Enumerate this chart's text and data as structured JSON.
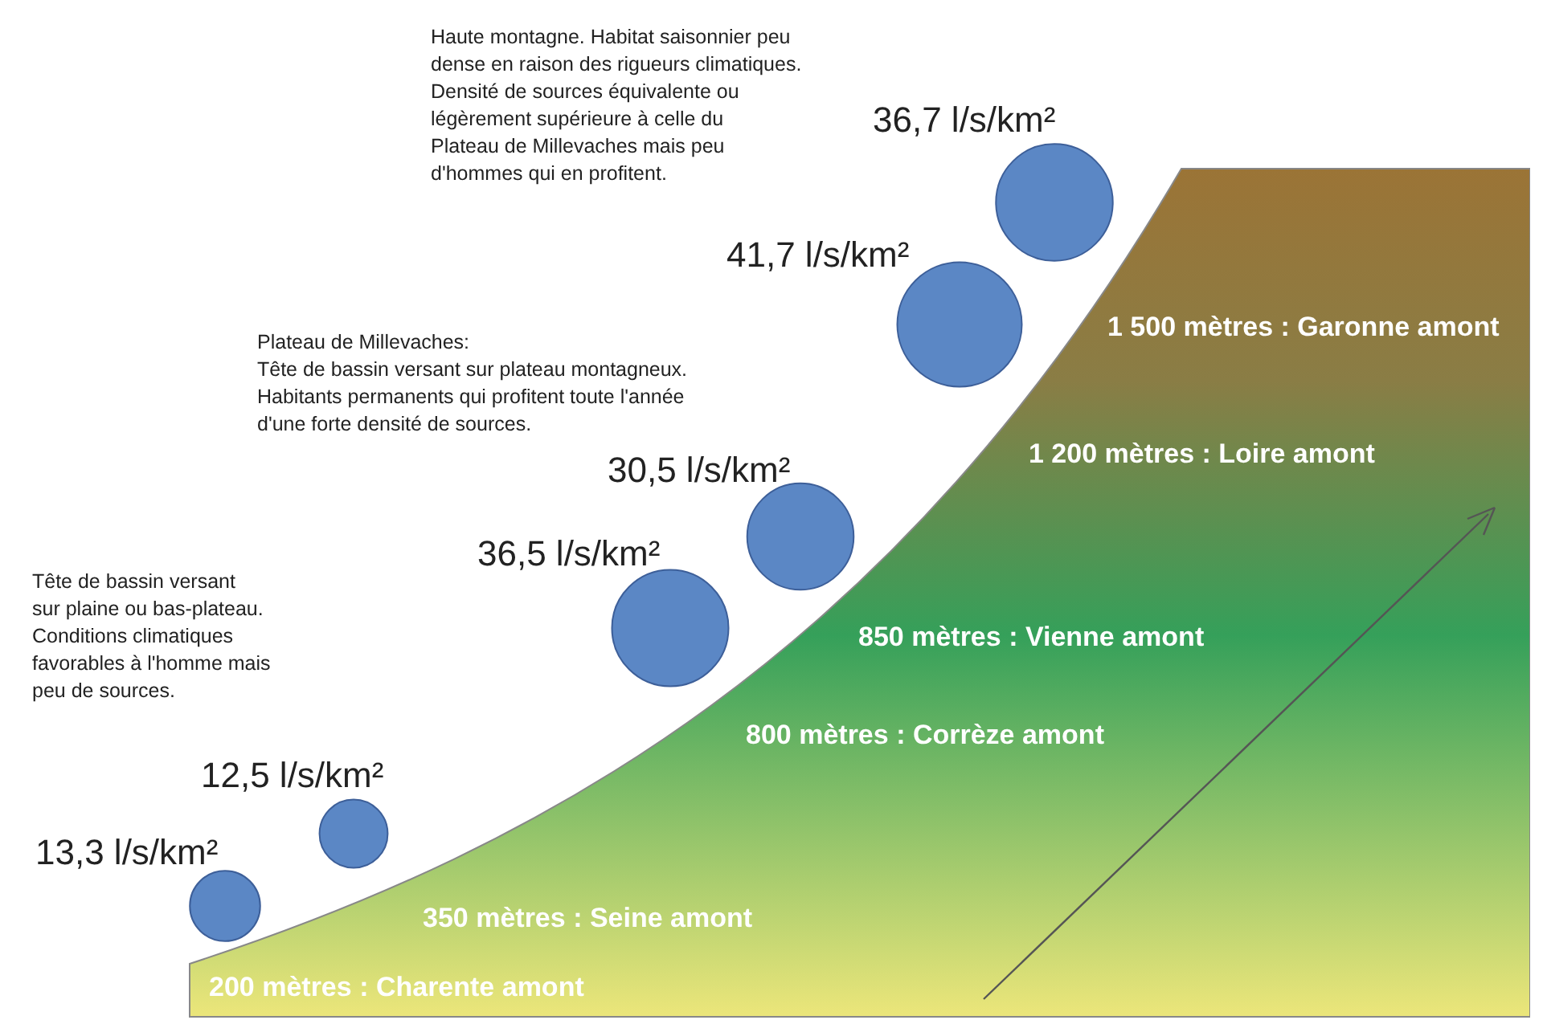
{
  "chart_data": {
    "type": "other",
    "categories": [
      "200 mètres : Charente amont",
      "350 mètres : Seine amont",
      "800 mètres : Corrèze amont",
      "850 mètres : Vienne amont",
      "1 200 mètres : Loire amont",
      "1 500 mètres : Garonne amont"
    ],
    "values": [
      13.3,
      12.5,
      36.5,
      30.5,
      41.7,
      36.7
    ],
    "value_labels": [
      "13,3 l/s/km²",
      "12,5 l/s/km²",
      "36,5 l/s/km²",
      "30,5 l/s/km²",
      "41,7 l/s/km²",
      "36,7 l/s/km²"
    ],
    "color": "#5b87c5",
    "annotations": [
      "Tête de bassin versant\nsur plaine ou bas-plateau.\nConditions climatiques\nfavorables à l'homme mais\npeu de sources.",
      "Plateau de Millevaches:\nTête de bassin versant sur plateau montagneux.\nHabitants permanents qui profitent toute l'année\nd'une forte densité de sources.",
      "Haute montagne. Habitat saisonnier peu\ndense en raison des rigueurs climatiques.\nDensité de sources équivalente ou\nlégèrement supérieure à celle du\nPlateau de Millevaches mais peu\nd'hommes qui en profitent."
    ]
  }
}
